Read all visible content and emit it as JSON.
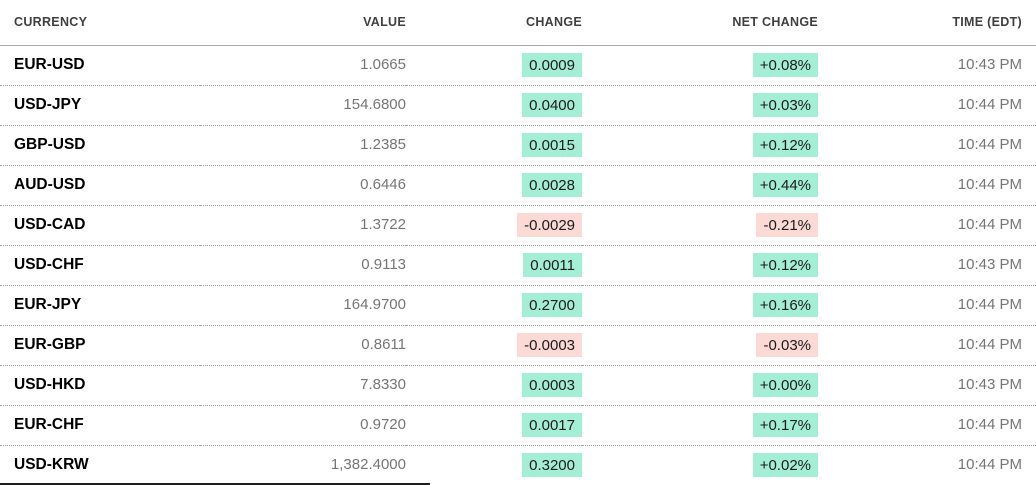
{
  "colors": {
    "positive_bg": "#a5eed6",
    "negative_bg": "#fbd9d5",
    "header_text": "#3f3f3f",
    "ticker_text": "#000000",
    "muted_text": "#757575",
    "header_rule": "#a8a8a8",
    "row_divider": "#9c9c9c"
  },
  "table": {
    "columns": [
      {
        "label": "CURRENCY"
      },
      {
        "label": "VALUE"
      },
      {
        "label": "CHANGE"
      },
      {
        "label": "NET CHANGE"
      },
      {
        "label": "TIME (EDT)"
      }
    ],
    "rows": [
      {
        "currency": "EUR-USD",
        "value": "1.0665",
        "change": "0.0009",
        "net_change": "+0.08%",
        "time": "10:43 PM",
        "direction": "up"
      },
      {
        "currency": "USD-JPY",
        "value": "154.6800",
        "change": "0.0400",
        "net_change": "+0.03%",
        "time": "10:44 PM",
        "direction": "up"
      },
      {
        "currency": "GBP-USD",
        "value": "1.2385",
        "change": "0.0015",
        "net_change": "+0.12%",
        "time": "10:44 PM",
        "direction": "up"
      },
      {
        "currency": "AUD-USD",
        "value": "0.6446",
        "change": "0.0028",
        "net_change": "+0.44%",
        "time": "10:44 PM",
        "direction": "up"
      },
      {
        "currency": "USD-CAD",
        "value": "1.3722",
        "change": "-0.0029",
        "net_change": "-0.21%",
        "time": "10:44 PM",
        "direction": "down"
      },
      {
        "currency": "USD-CHF",
        "value": "0.9113",
        "change": "0.0011",
        "net_change": "+0.12%",
        "time": "10:43 PM",
        "direction": "up"
      },
      {
        "currency": "EUR-JPY",
        "value": "164.9700",
        "change": "0.2700",
        "net_change": "+0.16%",
        "time": "10:44 PM",
        "direction": "up"
      },
      {
        "currency": "EUR-GBP",
        "value": "0.8611",
        "change": "-0.0003",
        "net_change": "-0.03%",
        "time": "10:44 PM",
        "direction": "down"
      },
      {
        "currency": "USD-HKD",
        "value": "7.8330",
        "change": "0.0003",
        "net_change": "+0.00%",
        "time": "10:43 PM",
        "direction": "up"
      },
      {
        "currency": "EUR-CHF",
        "value": "0.9720",
        "change": "0.0017",
        "net_change": "+0.17%",
        "time": "10:44 PM",
        "direction": "up"
      },
      {
        "currency": "USD-KRW",
        "value": "1,382.4000",
        "change": "0.3200",
        "net_change": "+0.02%",
        "time": "10:44 PM",
        "direction": "up"
      }
    ]
  }
}
